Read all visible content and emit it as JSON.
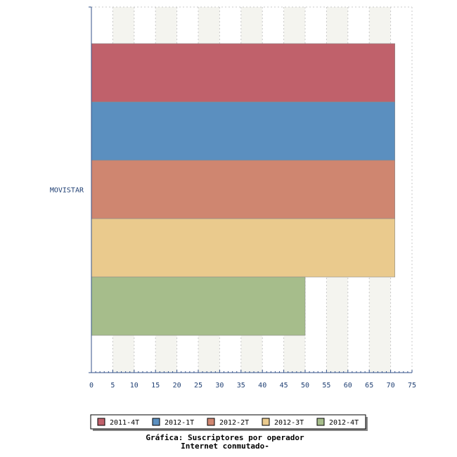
{
  "chart_data": {
    "type": "bar",
    "orientation": "horizontal",
    "categories": [
      "MOVISTAR"
    ],
    "series": [
      {
        "name": "2011-4T",
        "values": [
          71
        ],
        "color": "#c0616b"
      },
      {
        "name": "2012-1T",
        "values": [
          71
        ],
        "color": "#5b8fbf"
      },
      {
        "name": "2012-2T",
        "values": [
          71
        ],
        "color": "#cf8670"
      },
      {
        "name": "2012-3T",
        "values": [
          71
        ],
        "color": "#eaca8d"
      },
      {
        "name": "2012-4T",
        "values": [
          50
        ],
        "color": "#a6bd8b"
      }
    ],
    "xlim": [
      0,
      75
    ],
    "xticks": [
      0,
      5,
      10,
      15,
      20,
      25,
      30,
      35,
      40,
      45,
      50,
      55,
      60,
      65,
      70,
      75
    ],
    "grid": true,
    "legend_position": "bottom",
    "title": "",
    "xlabel": "",
    "ylabel": ""
  },
  "caption": {
    "line1": "Gráfica: Suscriptores por operador",
    "line2": "Internet conmutado-"
  }
}
